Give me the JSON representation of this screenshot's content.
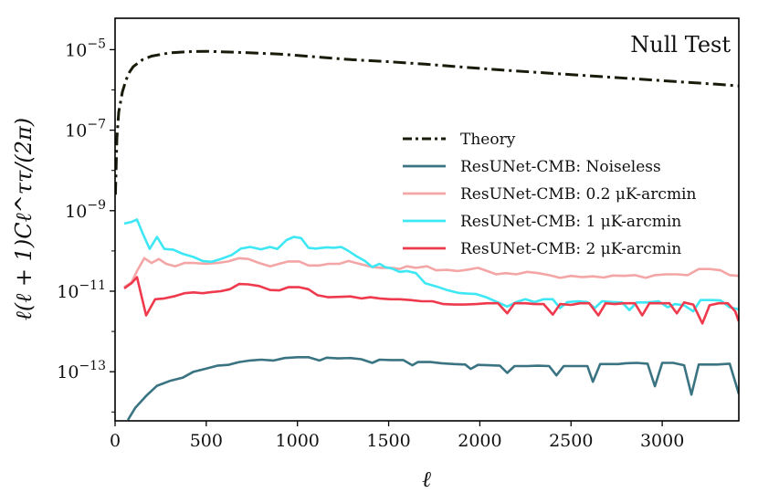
{
  "chart_data": {
    "type": "line",
    "title": "",
    "annotation": "Null Test",
    "xlabel": "ℓ",
    "ylabel": "ℓ(ℓ + 1)Cℓ^ττ/(2π)",
    "xscale": "linear",
    "yscale": "log",
    "xlim": [
      0,
      3420
    ],
    "ylim_exp": [
      -14.22,
      -4.22
    ],
    "xticks": [
      0,
      500,
      1000,
      1500,
      2000,
      2500,
      3000
    ],
    "xtick_labels": [
      "0",
      "500",
      "1000",
      "1500",
      "2000",
      "2500",
      "3000"
    ],
    "yticks_exp": [
      -13,
      -11,
      -9,
      -7,
      -5
    ],
    "ytick_base": "10",
    "ytick_exponents": [
      "−13",
      "−11",
      "−9",
      "−7",
      "−5"
    ],
    "legend_position": "center-right",
    "series": [
      {
        "name": "Theory",
        "color": "#1a1a0a",
        "dash": "dashdot",
        "points": [
          [
            2,
            -8.6
          ],
          [
            10,
            -7.2
          ],
          [
            20,
            -6.55
          ],
          [
            40,
            -6.05
          ],
          [
            60,
            -5.75
          ],
          [
            80,
            -5.55
          ],
          [
            100,
            -5.42
          ],
          [
            150,
            -5.25
          ],
          [
            200,
            -5.16
          ],
          [
            300,
            -5.08
          ],
          [
            400,
            -5.05
          ],
          [
            500,
            -5.04
          ],
          [
            700,
            -5.07
          ],
          [
            900,
            -5.11
          ],
          [
            1100,
            -5.18
          ],
          [
            1300,
            -5.25
          ],
          [
            1500,
            -5.3
          ],
          [
            1700,
            -5.36
          ],
          [
            1900,
            -5.43
          ],
          [
            2100,
            -5.5
          ],
          [
            2300,
            -5.56
          ],
          [
            2500,
            -5.62
          ],
          [
            2700,
            -5.68
          ],
          [
            2900,
            -5.74
          ],
          [
            3100,
            -5.8
          ],
          [
            3300,
            -5.86
          ],
          [
            3420,
            -5.9
          ]
        ]
      },
      {
        "name": "ResUNet-CMB: Noiseless",
        "color": "#3a7482",
        "dash": "solid",
        "points": [
          [
            70,
            -14.2
          ],
          [
            110,
            -13.9
          ],
          [
            170,
            -13.6
          ],
          [
            230,
            -13.35
          ],
          [
            300,
            -13.23
          ],
          [
            370,
            -13.15
          ],
          [
            430,
            -13.0
          ],
          [
            500,
            -12.92
          ],
          [
            560,
            -12.85
          ],
          [
            620,
            -12.83
          ],
          [
            680,
            -12.76
          ],
          [
            740,
            -12.72
          ],
          [
            800,
            -12.7
          ],
          [
            870,
            -12.72
          ],
          [
            930,
            -12.66
          ],
          [
            1000,
            -12.64
          ],
          [
            1060,
            -12.64
          ],
          [
            1120,
            -12.72
          ],
          [
            1160,
            -12.65
          ],
          [
            1220,
            -12.67
          ],
          [
            1290,
            -12.66
          ],
          [
            1350,
            -12.69
          ],
          [
            1410,
            -12.78
          ],
          [
            1450,
            -12.7
          ],
          [
            1510,
            -12.71
          ],
          [
            1580,
            -12.71
          ],
          [
            1630,
            -12.84
          ],
          [
            1660,
            -12.76
          ],
          [
            1730,
            -12.76
          ],
          [
            1790,
            -12.79
          ],
          [
            1860,
            -12.81
          ],
          [
            1920,
            -12.82
          ],
          [
            1950,
            -12.93
          ],
          [
            1990,
            -12.83
          ],
          [
            2050,
            -12.84
          ],
          [
            2110,
            -12.85
          ],
          [
            2150,
            -13.03
          ],
          [
            2190,
            -12.86
          ],
          [
            2260,
            -12.86
          ],
          [
            2320,
            -12.85
          ],
          [
            2380,
            -12.86
          ],
          [
            2420,
            -13.09
          ],
          [
            2460,
            -12.86
          ],
          [
            2530,
            -12.86
          ],
          [
            2590,
            -12.86
          ],
          [
            2620,
            -13.25
          ],
          [
            2660,
            -12.81
          ],
          [
            2720,
            -12.81
          ],
          [
            2760,
            -12.81
          ],
          [
            2800,
            -12.79
          ],
          [
            2860,
            -12.78
          ],
          [
            2920,
            -12.8
          ],
          [
            2960,
            -13.36
          ],
          [
            3000,
            -12.78
          ],
          [
            3060,
            -12.78
          ],
          [
            3120,
            -12.84
          ],
          [
            3160,
            -13.57
          ],
          [
            3200,
            -12.82
          ],
          [
            3260,
            -12.82
          ],
          [
            3300,
            -12.82
          ],
          [
            3370,
            -12.8
          ],
          [
            3420,
            -13.55
          ]
        ]
      },
      {
        "name": "ResUNet-CMB: 0.2 μK-arcmin",
        "color": "#f4a6a6",
        "dash": "solid",
        "points": [
          [
            50,
            -10.9
          ],
          [
            90,
            -10.78
          ],
          [
            120,
            -10.5
          ],
          [
            160,
            -10.18
          ],
          [
            200,
            -10.3
          ],
          [
            240,
            -10.2
          ],
          [
            280,
            -10.32
          ],
          [
            330,
            -10.38
          ],
          [
            380,
            -10.3
          ],
          [
            430,
            -10.3
          ],
          [
            500,
            -10.32
          ],
          [
            560,
            -10.3
          ],
          [
            620,
            -10.26
          ],
          [
            680,
            -10.18
          ],
          [
            730,
            -10.2
          ],
          [
            790,
            -10.3
          ],
          [
            850,
            -10.38
          ],
          [
            900,
            -10.32
          ],
          [
            950,
            -10.26
          ],
          [
            1010,
            -10.26
          ],
          [
            1060,
            -10.36
          ],
          [
            1120,
            -10.36
          ],
          [
            1170,
            -10.32
          ],
          [
            1230,
            -10.32
          ],
          [
            1280,
            -10.25
          ],
          [
            1340,
            -10.32
          ],
          [
            1410,
            -10.4
          ],
          [
            1460,
            -10.42
          ],
          [
            1520,
            -10.42
          ],
          [
            1560,
            -10.45
          ],
          [
            1600,
            -10.38
          ],
          [
            1650,
            -10.42
          ],
          [
            1710,
            -10.38
          ],
          [
            1760,
            -10.48
          ],
          [
            1820,
            -10.47
          ],
          [
            1880,
            -10.5
          ],
          [
            1940,
            -10.46
          ],
          [
            1990,
            -10.42
          ],
          [
            2040,
            -10.5
          ],
          [
            2090,
            -10.58
          ],
          [
            2140,
            -10.55
          ],
          [
            2200,
            -10.58
          ],
          [
            2260,
            -10.52
          ],
          [
            2320,
            -10.55
          ],
          [
            2380,
            -10.6
          ],
          [
            2440,
            -10.67
          ],
          [
            2500,
            -10.62
          ],
          [
            2560,
            -10.65
          ],
          [
            2620,
            -10.63
          ],
          [
            2680,
            -10.66
          ],
          [
            2730,
            -10.61
          ],
          [
            2790,
            -10.62
          ],
          [
            2850,
            -10.6
          ],
          [
            2910,
            -10.67
          ],
          [
            2960,
            -10.6
          ],
          [
            3020,
            -10.58
          ],
          [
            3080,
            -10.58
          ],
          [
            3140,
            -10.6
          ],
          [
            3200,
            -10.45
          ],
          [
            3260,
            -10.45
          ],
          [
            3320,
            -10.48
          ],
          [
            3370,
            -10.6
          ],
          [
            3420,
            -10.62
          ]
        ]
      },
      {
        "name": "ResUNet-CMB: 1 μK-arcmin",
        "color": "#3ee7f4",
        "dash": "solid",
        "points": [
          [
            50,
            -9.32
          ],
          [
            90,
            -9.28
          ],
          [
            120,
            -9.22
          ],
          [
            150,
            -9.55
          ],
          [
            190,
            -9.95
          ],
          [
            230,
            -9.65
          ],
          [
            270,
            -9.95
          ],
          [
            320,
            -9.97
          ],
          [
            370,
            -10.07
          ],
          [
            430,
            -10.15
          ],
          [
            480,
            -10.25
          ],
          [
            530,
            -10.27
          ],
          [
            580,
            -10.2
          ],
          [
            640,
            -10.1
          ],
          [
            690,
            -9.94
          ],
          [
            740,
            -9.9
          ],
          [
            800,
            -9.96
          ],
          [
            850,
            -9.9
          ],
          [
            890,
            -9.95
          ],
          [
            940,
            -9.73
          ],
          [
            980,
            -9.65
          ],
          [
            1020,
            -9.68
          ],
          [
            1060,
            -9.92
          ],
          [
            1100,
            -9.94
          ],
          [
            1160,
            -9.91
          ],
          [
            1200,
            -9.92
          ],
          [
            1240,
            -9.9
          ],
          [
            1280,
            -10.0
          ],
          [
            1320,
            -10.12
          ],
          [
            1370,
            -10.25
          ],
          [
            1410,
            -10.4
          ],
          [
            1450,
            -10.32
          ],
          [
            1480,
            -10.4
          ],
          [
            1520,
            -10.44
          ],
          [
            1560,
            -10.52
          ],
          [
            1600,
            -10.5
          ],
          [
            1650,
            -10.55
          ],
          [
            1700,
            -10.8
          ],
          [
            1760,
            -10.88
          ],
          [
            1820,
            -10.97
          ],
          [
            1880,
            -11.04
          ],
          [
            1930,
            -11.06
          ],
          [
            1980,
            -11.07
          ],
          [
            2030,
            -11.14
          ],
          [
            2070,
            -11.22
          ],
          [
            2110,
            -11.3
          ],
          [
            2150,
            -11.38
          ],
          [
            2200,
            -11.27
          ],
          [
            2250,
            -11.2
          ],
          [
            2300,
            -11.27
          ],
          [
            2350,
            -11.2
          ],
          [
            2400,
            -11.2
          ],
          [
            2440,
            -11.42
          ],
          [
            2480,
            -11.27
          ],
          [
            2540,
            -11.25
          ],
          [
            2590,
            -11.27
          ],
          [
            2630,
            -11.42
          ],
          [
            2670,
            -11.25
          ],
          [
            2730,
            -11.27
          ],
          [
            2780,
            -11.28
          ],
          [
            2820,
            -11.47
          ],
          [
            2860,
            -11.28
          ],
          [
            2920,
            -11.28
          ],
          [
            2980,
            -11.25
          ],
          [
            3030,
            -11.4
          ],
          [
            3070,
            -11.32
          ],
          [
            3120,
            -11.35
          ],
          [
            3170,
            -11.5
          ],
          [
            3210,
            -11.22
          ],
          [
            3270,
            -11.22
          ],
          [
            3320,
            -11.23
          ],
          [
            3370,
            -11.4
          ],
          [
            3420,
            -11.45
          ]
        ]
      },
      {
        "name": "ResUNet-CMB: 2 μK-arcmin",
        "color": "#ee3a4c",
        "dash": "solid",
        "points": [
          [
            50,
            -10.93
          ],
          [
            90,
            -10.8
          ],
          [
            120,
            -10.65
          ],
          [
            170,
            -11.6
          ],
          [
            220,
            -11.2
          ],
          [
            270,
            -11.18
          ],
          [
            330,
            -11.12
          ],
          [
            380,
            -11.05
          ],
          [
            430,
            -11.03
          ],
          [
            480,
            -11.05
          ],
          [
            530,
            -11.02
          ],
          [
            580,
            -11.0
          ],
          [
            630,
            -10.95
          ],
          [
            680,
            -10.82
          ],
          [
            730,
            -10.83
          ],
          [
            790,
            -10.87
          ],
          [
            850,
            -10.97
          ],
          [
            900,
            -10.98
          ],
          [
            950,
            -10.9
          ],
          [
            1010,
            -10.9
          ],
          [
            1060,
            -10.95
          ],
          [
            1110,
            -11.1
          ],
          [
            1170,
            -11.15
          ],
          [
            1230,
            -11.14
          ],
          [
            1290,
            -11.13
          ],
          [
            1350,
            -11.18
          ],
          [
            1400,
            -11.15
          ],
          [
            1450,
            -11.18
          ],
          [
            1510,
            -11.2
          ],
          [
            1560,
            -11.2
          ],
          [
            1620,
            -11.22
          ],
          [
            1680,
            -11.25
          ],
          [
            1740,
            -11.25
          ],
          [
            1800,
            -11.32
          ],
          [
            1860,
            -11.33
          ],
          [
            1920,
            -11.33
          ],
          [
            1980,
            -11.32
          ],
          [
            2040,
            -11.3
          ],
          [
            2100,
            -11.3
          ],
          [
            2150,
            -11.55
          ],
          [
            2190,
            -11.3
          ],
          [
            2250,
            -11.3
          ],
          [
            2300,
            -11.32
          ],
          [
            2350,
            -11.32
          ],
          [
            2400,
            -11.58
          ],
          [
            2440,
            -11.32
          ],
          [
            2500,
            -11.34
          ],
          [
            2550,
            -11.3
          ],
          [
            2600,
            -11.3
          ],
          [
            2650,
            -11.6
          ],
          [
            2690,
            -11.3
          ],
          [
            2740,
            -11.32
          ],
          [
            2790,
            -11.3
          ],
          [
            2850,
            -11.3
          ],
          [
            2890,
            -11.6
          ],
          [
            2930,
            -11.3
          ],
          [
            2990,
            -11.3
          ],
          [
            3040,
            -11.3
          ],
          [
            3080,
            -11.55
          ],
          [
            3120,
            -11.28
          ],
          [
            3170,
            -11.33
          ],
          [
            3220,
            -11.8
          ],
          [
            3260,
            -11.35
          ],
          [
            3310,
            -11.3
          ],
          [
            3360,
            -11.3
          ],
          [
            3400,
            -11.5
          ],
          [
            3420,
            -11.75
          ]
        ]
      }
    ]
  }
}
